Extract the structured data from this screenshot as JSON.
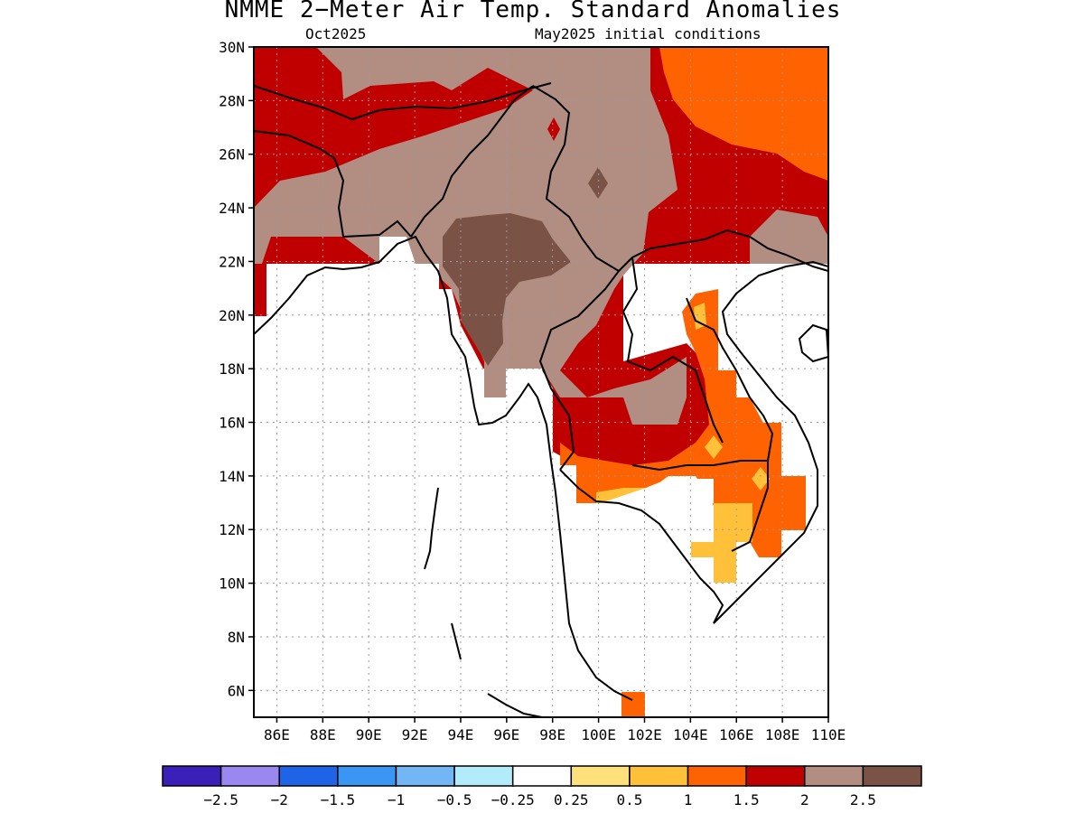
{
  "title": "NMME 2−Meter Air Temp. Standard Anomalies",
  "valid_month": "Oct2025",
  "initial_conditions": "May2025 initial conditions",
  "map": {
    "lat_range": [
      5,
      30
    ],
    "lon_range": [
      85,
      110
    ],
    "lat_ticks": [
      {
        "value": 30,
        "label": "30N"
      },
      {
        "value": 28,
        "label": "28N"
      },
      {
        "value": 26,
        "label": "26N"
      },
      {
        "value": 24,
        "label": "24N"
      },
      {
        "value": 22,
        "label": "22N"
      },
      {
        "value": 20,
        "label": "20N"
      },
      {
        "value": 18,
        "label": "18N"
      },
      {
        "value": 16,
        "label": "16N"
      },
      {
        "value": 14,
        "label": "14N"
      },
      {
        "value": 12,
        "label": "12N"
      },
      {
        "value": 10,
        "label": "10N"
      },
      {
        "value": 8,
        "label": "8N"
      },
      {
        "value": 6,
        "label": "6N"
      }
    ],
    "lon_ticks": [
      {
        "value": 86,
        "label": "86E"
      },
      {
        "value": 88,
        "label": "88E"
      },
      {
        "value": 90,
        "label": "90E"
      },
      {
        "value": 92,
        "label": "92E"
      },
      {
        "value": 94,
        "label": "94E"
      },
      {
        "value": 96,
        "label": "96E"
      },
      {
        "value": 98,
        "label": "98E"
      },
      {
        "value": 100,
        "label": "100E"
      },
      {
        "value": 102,
        "label": "102E"
      },
      {
        "value": 104,
        "label": "104E"
      },
      {
        "value": 106,
        "label": "106E"
      },
      {
        "value": 108,
        "label": "108E"
      },
      {
        "value": 110,
        "label": "110E"
      }
    ]
  },
  "colorbar": {
    "colors": [
      "#3a20b8",
      "#9b87f0",
      "#1f64e6",
      "#3b96f3",
      "#74b5f5",
      "#b2ecfb",
      "#ffffff",
      "#ffe07a",
      "#ffc13a",
      "#ff6200",
      "#c00000",
      "#b18d82",
      "#7a5246"
    ],
    "labels": [
      "−2.5",
      "−2",
      "−1.5",
      "−1",
      "−0.5",
      "−0.25",
      "0.25",
      "0.5",
      "1",
      "1.5",
      "2",
      "2.5"
    ]
  },
  "colors": {
    "anomaly_0_5_to_1": "#ffc13a",
    "anomaly_1_to_1_5": "#ff6200",
    "anomaly_1_5_to_2": "#c00000",
    "anomaly_2_to_2_5": "#b18d82",
    "anomaly_above_2_5": "#7a5246"
  }
}
